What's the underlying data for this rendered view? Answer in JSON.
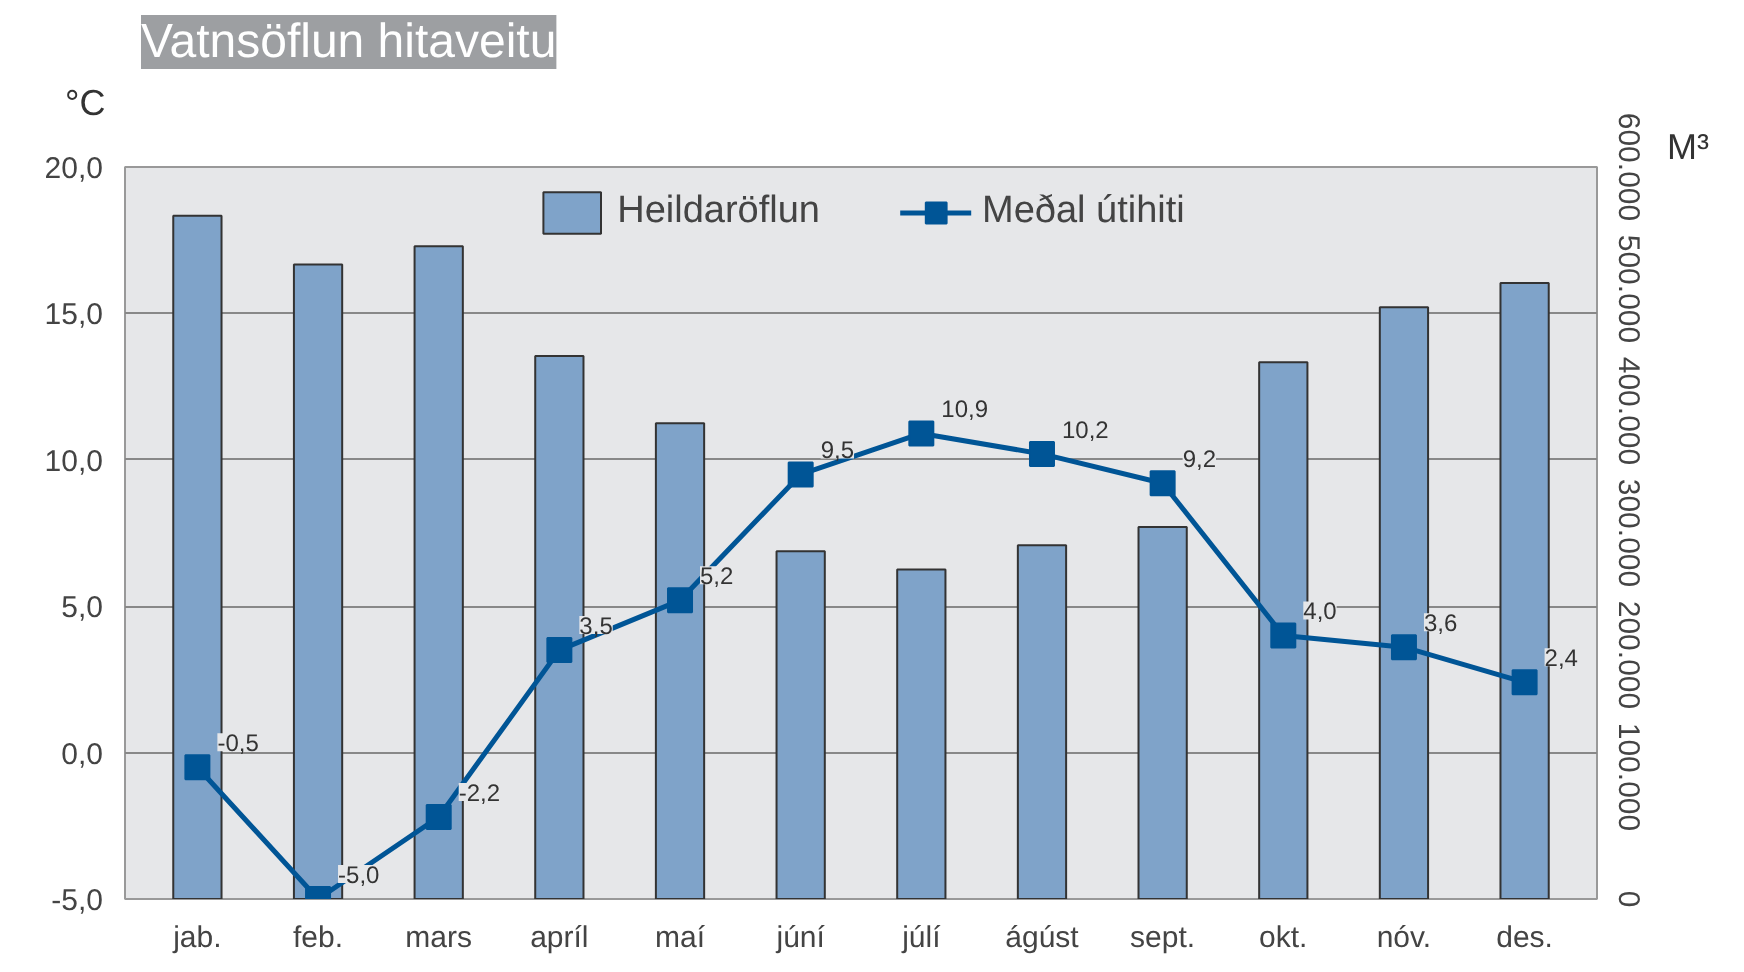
{
  "chart_data": {
    "type": "bar",
    "title": "Vatnsöflun hitaveitu",
    "ylabel": "°C",
    "y2label": "M³",
    "categories": [
      "jab.",
      "feb.",
      "mars",
      "apríl",
      "maí",
      "júní",
      "júlí",
      "ágúst",
      "sept.",
      "okt.",
      "nóv.",
      "des."
    ],
    "series": [
      {
        "name": "Heildaröflun",
        "axis": "y2",
        "color": "#7fa3c9",
        "values": [
          560000,
          520000,
          535000,
          445000,
          390000,
          285000,
          270000,
          290000,
          305000,
          440000,
          485000,
          505000
        ]
      },
      {
        "name": "Meðal útihiti",
        "type": "line",
        "color": "#005596",
        "marker": "square",
        "value_labels": [
          "-0,5",
          "-5,0",
          "-2,2",
          "3,5",
          "5,2",
          "9,5",
          "10,9",
          "10,2",
          "9,2",
          "4,0",
          "3,6",
          "2,4"
        ],
        "values": [
          -0.5,
          -5.0,
          -2.2,
          3.5,
          5.2,
          9.5,
          10.9,
          10.2,
          9.2,
          4.0,
          3.6,
          2.4
        ]
      }
    ],
    "ylim": [
      -5,
      20
    ],
    "yticks": [
      {
        "value": -5,
        "label": "-5,0"
      },
      {
        "value": 0,
        "label": "0,0"
      },
      {
        "value": 5,
        "label": "5,0"
      },
      {
        "value": 10,
        "label": "10,0"
      },
      {
        "value": 15,
        "label": "15,0"
      },
      {
        "value": 20,
        "label": "20,0"
      }
    ],
    "y2lim": [
      0,
      600000
    ],
    "y2ticks": [
      0,
      {
        "value": 100000,
        "label": "100.000"
      },
      {
        "value": 200000,
        "label": "200.000"
      },
      {
        "value": 300000,
        "label": "300.000"
      },
      {
        "value": 400000,
        "label": "400.000"
      },
      {
        "value": 500000,
        "label": "500.000"
      },
      {
        "value": 600000,
        "label": "600.000"
      }
    ],
    "grid": "y",
    "legend": "top"
  }
}
